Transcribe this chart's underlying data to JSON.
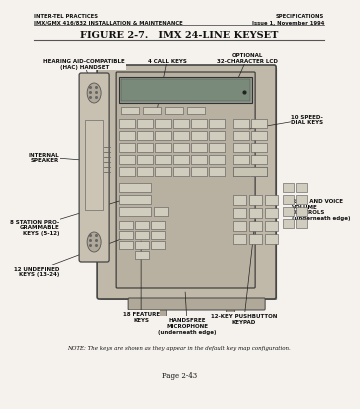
{
  "bg_color": "#f5f2ee",
  "header_left": "INTER-TEL PRACTICES\nIMX/GMX 416/832 INSTALLATION & MAINTENANCE",
  "header_right": "SPECIFICATIONS\nIssue 1, November 1994",
  "title": "FIGURE 2-7.   IMX 24-LINE KEYSET",
  "footer_note": "NOTE: The keys are shown as they appear in the default key map configuration.",
  "page": "Page 2-43",
  "labels": {
    "hearing_aid": "HEARING AID-COMPATIBLE\n(HAC) HANDSET",
    "call_keys": "4 CALL KEYS",
    "optional_lcd": "OPTIONAL\n32-CHARACTER LCD",
    "speed_dial": "10 SPEED-\nDIAL KEYS",
    "internal_speaker": "INTERNAL\nSPEAKER",
    "ring_voice": "RING AND VOICE\nVOLUME\nCONTROLS\n(underneath edge)",
    "station_pro": "8 STATION PRO-\nGRAMMABLE\nKEYS (5-12)",
    "undefined_keys": "12 UNDEFINED\nKEYS (13-24)",
    "feature_keys": "18 FEATURE\nKEYS",
    "handsfree": "HANDSFREE\nMICROPHONE\n(underneath edge)",
    "pushbutton": "12-KEY PUSHBUTTON\nKEYPAD"
  },
  "phone_body_color": "#c0b8a8",
  "phone_border_color": "#444444",
  "lcd_color": "#909a90",
  "lcd_inner_color": "#7a8a7a",
  "key_color": "#d4d0c4",
  "key_border": "#666666",
  "handset_color": "#c8c0b0",
  "stand_color": "#b0a898"
}
